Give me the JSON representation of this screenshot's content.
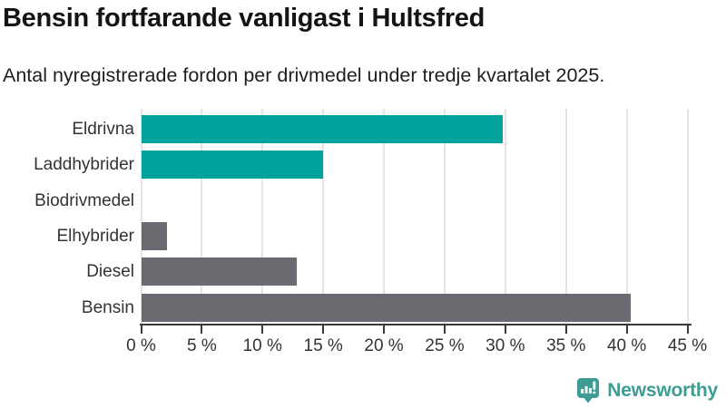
{
  "header": {
    "title": "Bensin fortfarande vanligast i Hultsfred",
    "subtitle": "Antal nyregistrerade fordon per drivmedel under tredje kvartalet 2025."
  },
  "chart_data": {
    "type": "bar",
    "orientation": "horizontal",
    "title": "Bensin fortfarande vanligast i Hultsfred",
    "subtitle": "Antal nyregistrerade fordon per drivmedel under tredje kvartalet 2025.",
    "categories": [
      "Eldrivna",
      "Laddhybrider",
      "Biodrivmedel",
      "Elhybrider",
      "Diesel",
      "Bensin"
    ],
    "values": [
      29.8,
      15.0,
      0.0,
      2.1,
      12.8,
      40.3
    ],
    "unit": "%",
    "xlim": [
      0,
      45
    ],
    "xticks": [
      0,
      5,
      10,
      15,
      20,
      25,
      30,
      35,
      40,
      45
    ],
    "xtick_label_suffix": " %",
    "grid": true,
    "legend": "none",
    "bar_colors": [
      "#00A39B",
      "#00A39B",
      "#6A6A70",
      "#6A6A70",
      "#6A6A70",
      "#6A6A70"
    ]
  },
  "branding": {
    "name": "Newsworthy",
    "logo_icon": "bar-chart-speech-bubble",
    "color": "#3E9C94"
  },
  "colors": {
    "accent_teal": "#00A39B",
    "neutral_gray": "#6A6A70",
    "gridline": "#E4E4E4",
    "axis": "#3A3A3A",
    "label_text": "#333333",
    "background": "#FFFFFF"
  }
}
